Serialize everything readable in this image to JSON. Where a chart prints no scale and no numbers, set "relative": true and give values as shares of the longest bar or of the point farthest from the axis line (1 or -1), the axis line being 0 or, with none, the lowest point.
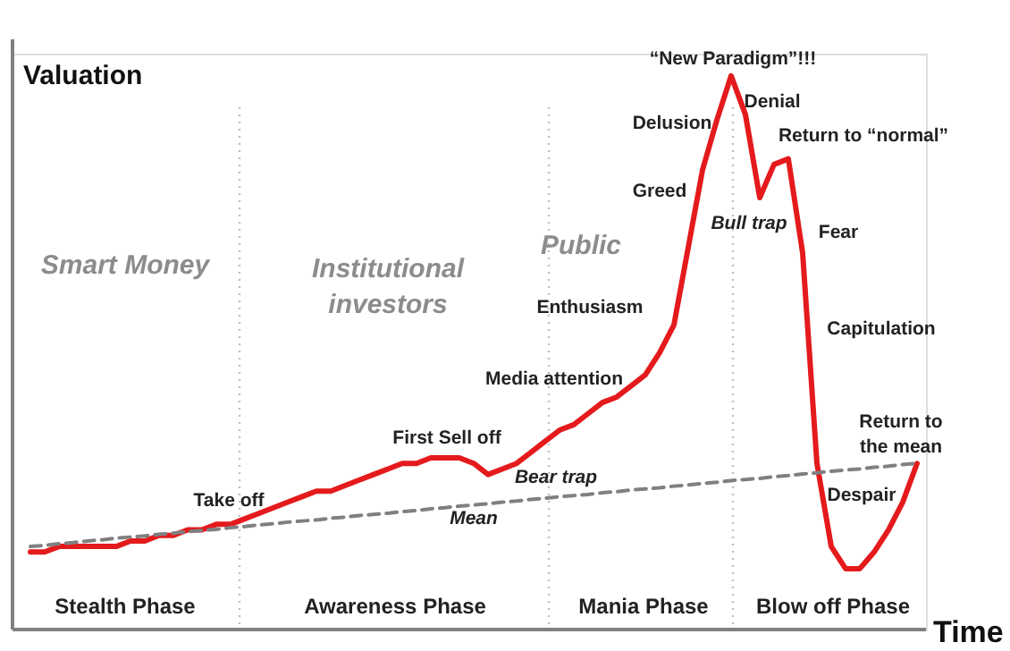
{
  "chart_data": {
    "type": "line",
    "relative": true,
    "ylabel": "Valuation",
    "xlabel": "Time",
    "tick_labels": false,
    "categories": [
      null,
      null,
      null,
      null,
      null,
      null,
      null,
      null,
      null,
      null,
      null,
      null,
      null,
      null,
      null,
      null,
      null,
      null,
      null,
      null,
      null,
      null,
      null,
      null,
      null,
      null,
      null,
      null,
      null,
      null,
      null,
      null,
      null,
      null,
      null,
      null,
      null,
      null,
      null,
      null,
      null,
      null,
      null,
      null,
      null,
      null,
      null,
      null,
      null,
      null,
      null,
      null,
      null,
      null,
      null,
      null,
      null,
      null,
      null,
      null,
      null,
      null,
      null
    ],
    "series": [
      {
        "color": "#e41a1c",
        "values": [
          0.14,
          0.14,
          0.15,
          0.15,
          0.15,
          0.15,
          0.15,
          0.16,
          0.16,
          0.17,
          0.17,
          0.18,
          0.18,
          0.19,
          0.19,
          0.2,
          0.21,
          0.22,
          0.23,
          0.24,
          0.25,
          0.25,
          0.26,
          0.27,
          0.28,
          0.29,
          0.3,
          0.3,
          0.31,
          0.31,
          0.31,
          0.3,
          0.28,
          0.29,
          0.3,
          0.32,
          0.34,
          0.36,
          0.37,
          0.39,
          0.41,
          0.42,
          0.44,
          0.46,
          0.5,
          0.55,
          0.69,
          0.83,
          0.92,
          1,
          0.93,
          0.78,
          0.84,
          0.85,
          0.68,
          0.3,
          0.15,
          0.11,
          0.11,
          0.14,
          0.18,
          0.23,
          0.3
        ]
      },
      {
        "color": "#808080",
        "line_style": "dashed",
        "values": [
          0.15,
          0.152,
          0.155,
          0.157,
          0.16,
          0.162,
          0.165,
          0.167,
          0.169,
          0.172,
          0.174,
          0.177,
          0.179,
          0.181,
          0.184,
          0.186,
          0.189,
          0.191,
          0.194,
          0.196,
          0.198,
          0.201,
          0.203,
          0.206,
          0.208,
          0.21,
          0.213,
          0.215,
          0.218,
          0.22,
          0.223,
          0.225,
          0.227,
          0.23,
          0.232,
          0.235,
          0.237,
          0.24,
          0.242,
          0.244,
          0.247,
          0.249,
          0.252,
          0.254,
          0.256,
          0.259,
          0.261,
          0.264,
          0.266,
          0.269,
          0.271,
          0.273,
          0.276,
          0.278,
          0.281,
          0.283,
          0.286,
          0.288,
          0.29,
          0.293,
          0.295,
          0.298,
          0.3
        ]
      }
    ],
    "annotations": [
      "Smart Money",
      "Institutional investors",
      "Public",
      "Stealth Phase",
      "Awareness Phase",
      "Mania Phase",
      "Blow off Phase",
      "Take off",
      "First Sell off",
      "Bear trap",
      "Media attention",
      "Enthusiasm",
      "Greed",
      "Delusion",
      "“New Paradigm”!!!",
      "Denial",
      "Bull trap",
      "Return to “normal”",
      "Fear",
      "Capitulation",
      "Despair",
      "Return to the mean",
      "Mean"
    ]
  }
}
